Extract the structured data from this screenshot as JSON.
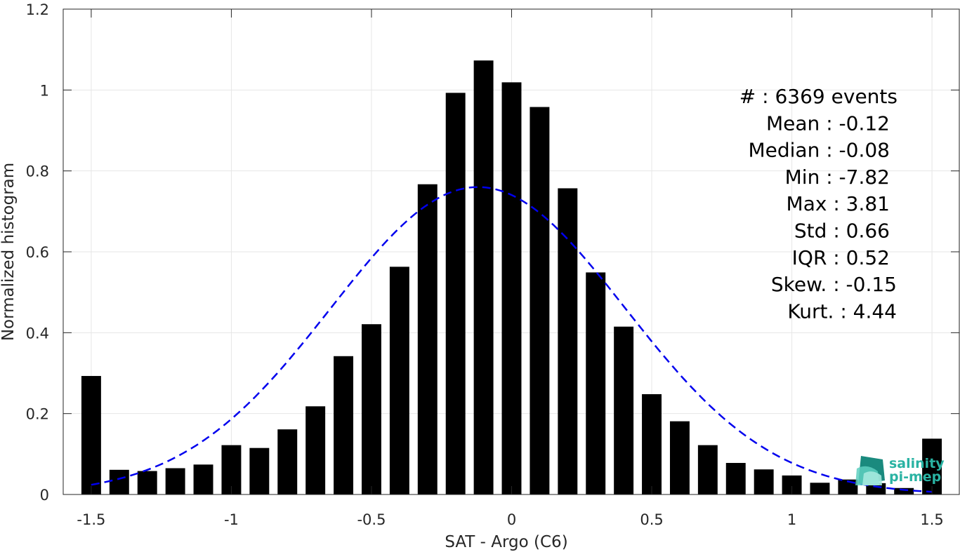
{
  "chart_data": {
    "type": "bar",
    "xlabel": "SAT - Argo (C6)",
    "ylabel": "Normalized histogram",
    "xlim": [
      -1.6,
      1.6
    ],
    "ylim": [
      0,
      1.2
    ],
    "x_ticks": [
      -1.5,
      -1,
      -0.5,
      0,
      0.5,
      1,
      1.5
    ],
    "x_tick_labels": [
      "-1.5",
      "-1",
      "-0.5",
      "0",
      "0.5",
      "1",
      "1.5"
    ],
    "y_ticks": [
      0,
      0.2,
      0.4,
      0.6,
      0.8,
      1,
      1.2
    ],
    "y_tick_labels": [
      "0",
      "0.2",
      "0.4",
      "0.6",
      "0.8",
      "1",
      "1.2"
    ],
    "grid": true,
    "bar_width": 0.07,
    "bar_color": "#000000",
    "curve_color": "#0000ee",
    "bins": [
      -1.5,
      -1.4,
      -1.3,
      -1.2,
      -1.1,
      -1.0,
      -0.9,
      -0.8,
      -0.7,
      -0.6,
      -0.5,
      -0.4,
      -0.3,
      -0.2,
      -0.1,
      0.0,
      0.1,
      0.2,
      0.3,
      0.4,
      0.5,
      0.6,
      0.7,
      0.8,
      0.9,
      1.0,
      1.1,
      1.2,
      1.3,
      1.4,
      1.5
    ],
    "values": [
      0.293,
      0.061,
      0.058,
      0.065,
      0.074,
      0.122,
      0.115,
      0.161,
      0.218,
      0.342,
      0.421,
      0.563,
      0.767,
      0.993,
      1.073,
      1.019,
      0.958,
      0.757,
      0.549,
      0.415,
      0.248,
      0.181,
      0.122,
      0.078,
      0.062,
      0.047,
      0.029,
      0.037,
      0.028,
      0.016,
      0.138
    ],
    "fit": {
      "type": "gaussian",
      "mean": -0.12,
      "std": 0.525,
      "peak": 0.76,
      "x_range": [
        -1.5,
        1.5
      ],
      "style": "dashed"
    },
    "stats": [
      "#  : 6369 events",
      "Mean : -0.12",
      "Median : -0.08",
      "Min : -7.82",
      "Max : 3.81",
      "Std : 0.66",
      "IQR : 0.52",
      "Skew. : -0.15",
      "Kurt. : 4.44"
    ]
  },
  "logo": {
    "line1": "salinity",
    "line2": "pi-mep"
  }
}
